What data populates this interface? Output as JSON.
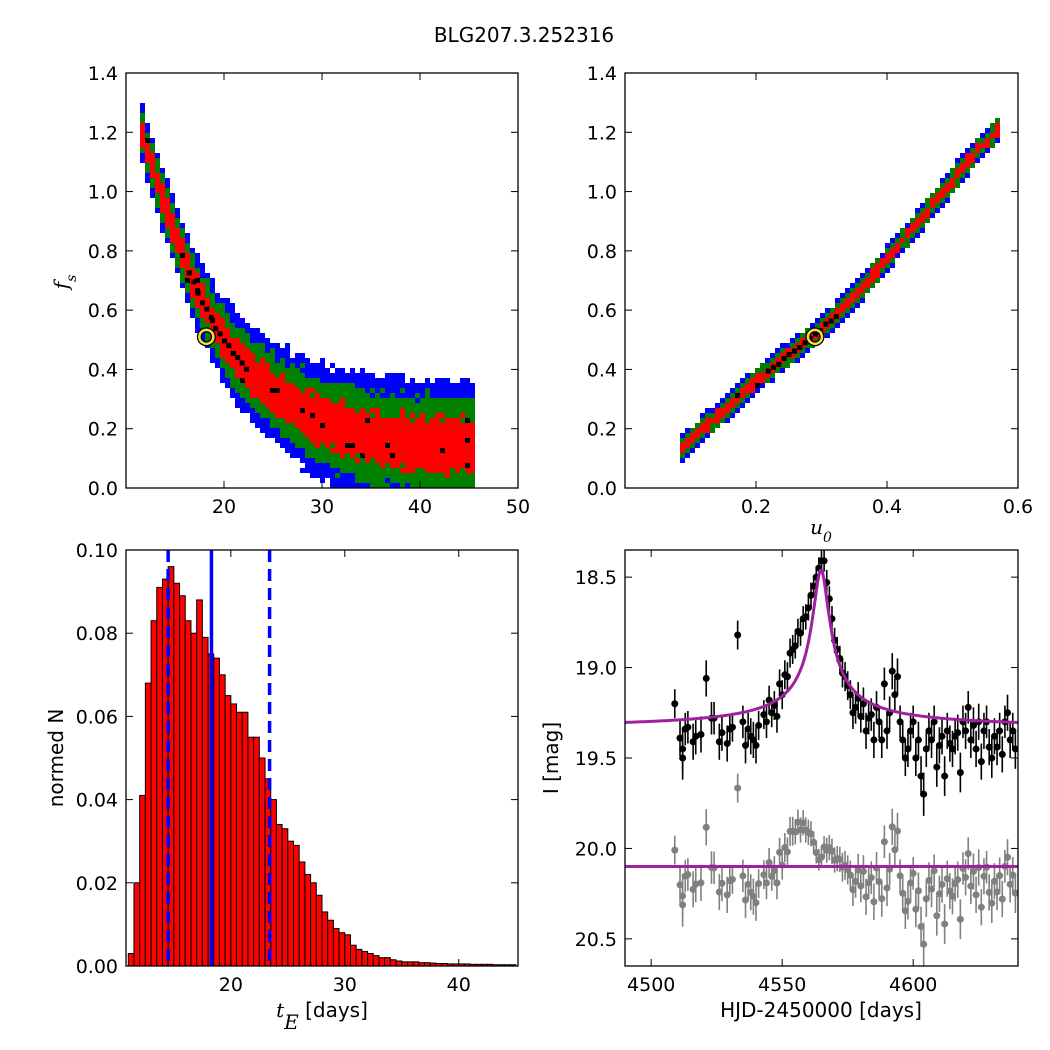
{
  "figure": {
    "title": "BLG207.3.252316"
  },
  "chart_data": [
    {
      "id": "fs_vs_tE",
      "type": "heatmap",
      "title": "",
      "xlabel": "",
      "ylabel": "f_s",
      "ylabel_parts": {
        "base": "f",
        "sub": "s"
      },
      "xlim": [
        10,
        50
      ],
      "ylim": [
        0.0,
        1.4
      ],
      "xticks": [
        20,
        30,
        40,
        50
      ],
      "yticks": [
        0.0,
        0.2,
        0.4,
        0.6,
        0.8,
        1.0,
        1.2,
        1.4
      ],
      "ytick_labels": [
        "0.0",
        "0.2",
        "0.4",
        "0.6",
        "0.8",
        "1.0",
        "1.2",
        "1.4"
      ],
      "confidence_colors": {
        "outer": "#0000ff",
        "mid": "#008000",
        "inner": "#ff0000",
        "core": "#000000"
      },
      "band_curve": {
        "x": [
          11.5,
          13,
          15,
          17,
          19,
          21,
          23,
          26,
          30,
          35,
          40,
          45.5
        ],
        "y": [
          1.21,
          1.05,
          0.85,
          0.68,
          0.55,
          0.45,
          0.38,
          0.3,
          0.22,
          0.17,
          0.15,
          0.14
        ]
      },
      "best_fit": {
        "x": 18.2,
        "y": 0.51
      }
    },
    {
      "id": "fs_vs_u0",
      "type": "heatmap",
      "title": "",
      "xlabel": "u_0",
      "xlabel_parts": {
        "base": "u",
        "sub": "0"
      },
      "ylabel": "",
      "xlim": [
        0.0,
        0.6
      ],
      "ylim": [
        0.0,
        1.4
      ],
      "xticks": [
        0.2,
        0.4,
        0.6
      ],
      "xtick_labels": [
        "0.2",
        "0.4",
        "0.6"
      ],
      "yticks": [
        0.0,
        0.2,
        0.4,
        0.6,
        0.8,
        1.0,
        1.2,
        1.4
      ],
      "ytick_labels": [
        "0.0",
        "0.2",
        "0.4",
        "0.6",
        "0.8",
        "1.0",
        "1.2",
        "1.4"
      ],
      "band_curve": {
        "x": [
          0.085,
          0.12,
          0.17,
          0.22,
          0.28,
          0.33,
          0.38,
          0.43,
          0.48,
          0.53,
          0.57
        ],
        "y": [
          0.13,
          0.2,
          0.3,
          0.4,
          0.5,
          0.6,
          0.72,
          0.85,
          0.98,
          1.12,
          1.21
        ]
      },
      "best_fit": {
        "x": 0.29,
        "y": 0.51
      }
    },
    {
      "id": "tE_histogram",
      "type": "bar",
      "title": "",
      "xlabel": "t_E [days]",
      "xlabel_parts": {
        "base": "t",
        "sub": "E",
        "rest": " [days]"
      },
      "ylabel": "normed N",
      "xlim": [
        10.8,
        45.2
      ],
      "ylim": [
        0.0,
        0.1
      ],
      "xticks": [
        20,
        30,
        40
      ],
      "yticks": [
        0.0,
        0.02,
        0.04,
        0.06,
        0.08,
        0.1
      ],
      "ytick_labels": [
        "0.00",
        "0.02",
        "0.04",
        "0.06",
        "0.08",
        "0.10"
      ],
      "bin_start": 11.0,
      "bin_width": 0.5,
      "values": [
        0.003,
        0.02,
        0.041,
        0.068,
        0.083,
        0.091,
        0.093,
        0.096,
        0.092,
        0.089,
        0.083,
        0.08,
        0.088,
        0.079,
        0.075,
        0.074,
        0.07,
        0.065,
        0.063,
        0.061,
        0.061,
        0.055,
        0.055,
        0.05,
        0.045,
        0.04,
        0.034,
        0.033,
        0.03,
        0.029,
        0.025,
        0.022,
        0.02,
        0.017,
        0.013,
        0.011,
        0.009,
        0.008,
        0.0075,
        0.005,
        0.004,
        0.0035,
        0.003,
        0.0025,
        0.002,
        0.002,
        0.0015,
        0.0012,
        0.001,
        0.001,
        0.001,
        0.0008,
        0.0008,
        0.0007,
        0.0006,
        0.0006,
        0.0005,
        0.0005,
        0.0005,
        0.0005,
        0.0004,
        0.0004,
        0.0004,
        0.0004,
        0.0003,
        0.0003,
        0.0003,
        0.0003
      ],
      "bar_color": "#ff0000",
      "median": 18.3,
      "interval": [
        14.5,
        23.4
      ],
      "line_color": "#0000ff"
    },
    {
      "id": "light_curve",
      "type": "scatter",
      "title": "",
      "xlabel": "HJD-2450000 [days]",
      "ylabel": "I [mag]",
      "xlim": [
        4490,
        4640
      ],
      "ylim": [
        20.65,
        18.35
      ],
      "xticks": [
        4500,
        4550,
        4600
      ],
      "yticks": [
        18.5,
        19.0,
        19.5,
        20.0,
        20.5
      ],
      "ytick_labels": [
        "18.5",
        "19.0",
        "19.5",
        "20.0",
        "20.5"
      ],
      "model_color": "#a020a0",
      "model": {
        "baseline": 19.34,
        "peak_mag": 18.46,
        "t0": 4564.8,
        "width": 4.2
      },
      "residual_offset": 20.1,
      "series": [
        {
          "name": "",
          "color": "#000000",
          "points": [
            [
              4509,
              19.2,
              0.08
            ],
            [
              4511,
              19.39,
              0.1
            ],
            [
              4512,
              19.45,
              0.12
            ],
            [
              4512,
              19.5,
              0.12
            ],
            [
              4513,
              19.34,
              0.09
            ],
            [
              4514,
              19.33,
              0.09
            ],
            [
              4516,
              19.41,
              0.1
            ],
            [
              4517,
              19.38,
              0.1
            ],
            [
              4519,
              19.37,
              0.1
            ],
            [
              4521,
              19.06,
              0.1
            ],
            [
              4523,
              19.28,
              0.09
            ],
            [
              4524,
              19.28,
              0.09
            ],
            [
              4526,
              19.41,
              0.1
            ],
            [
              4527,
              19.36,
              0.1
            ],
            [
              4529,
              19.42,
              0.1
            ],
            [
              4530,
              19.34,
              0.08
            ],
            [
              4531,
              19.33,
              0.08
            ],
            [
              4533,
              18.82,
              0.08
            ],
            [
              4535,
              19.3,
              0.09
            ],
            [
              4536,
              19.43,
              0.1
            ],
            [
              4537,
              19.34,
              0.09
            ],
            [
              4538,
              19.38,
              0.1
            ],
            [
              4539,
              19.4,
              0.1
            ],
            [
              4540,
              19.43,
              0.1
            ],
            [
              4541,
              19.32,
              0.08
            ],
            [
              4543,
              19.26,
              0.08
            ],
            [
              4544,
              19.3,
              0.09
            ],
            [
              4545,
              19.18,
              0.08
            ],
            [
              4546,
              19.25,
              0.08
            ],
            [
              4547,
              19.21,
              0.08
            ],
            [
              4548,
              19.27,
              0.09
            ],
            [
              4549,
              19.09,
              0.08
            ],
            [
              4550,
              19.15,
              0.08
            ],
            [
              4551,
              19.04,
              0.08
            ],
            [
              4552,
              19.05,
              0.08
            ],
            [
              4553,
              18.92,
              0.08
            ],
            [
              4554,
              18.9,
              0.08
            ],
            [
              4555,
              18.88,
              0.07
            ],
            [
              4556,
              18.8,
              0.07
            ],
            [
              4557,
              18.81,
              0.07
            ],
            [
              4558,
              18.73,
              0.07
            ],
            [
              4559,
              18.72,
              0.07
            ],
            [
              4560,
              18.67,
              0.07
            ],
            [
              4561,
              18.6,
              0.07
            ],
            [
              4562,
              18.55,
              0.06
            ],
            [
              4563,
              18.5,
              0.06
            ],
            [
              4564,
              18.45,
              0.06
            ],
            [
              4565,
              18.41,
              0.06
            ],
            [
              4566,
              18.41,
              0.06
            ],
            [
              4567,
              18.53,
              0.07
            ],
            [
              4568,
              18.62,
              0.07
            ],
            [
              4569,
              18.73,
              0.07
            ],
            [
              4570,
              18.85,
              0.07
            ],
            [
              4571,
              18.9,
              0.07
            ],
            [
              4572,
              18.95,
              0.07
            ],
            [
              4573,
              19.03,
              0.08
            ],
            [
              4574,
              19.05,
              0.08
            ],
            [
              4575,
              19.1,
              0.08
            ],
            [
              4576,
              19.15,
              0.08
            ],
            [
              4577,
              19.25,
              0.09
            ],
            [
              4578,
              19.22,
              0.09
            ],
            [
              4579,
              19.17,
              0.09
            ],
            [
              4580,
              19.27,
              0.09
            ],
            [
              4581,
              19.2,
              0.09
            ],
            [
              4582,
              19.35,
              0.1
            ],
            [
              4583,
              19.28,
              0.09
            ],
            [
              4584,
              19.26,
              0.09
            ],
            [
              4585,
              19.4,
              0.1
            ],
            [
              4586,
              19.22,
              0.09
            ],
            [
              4587,
              19.3,
              0.09
            ],
            [
              4588,
              19.4,
              0.1
            ],
            [
              4589,
              19.09,
              0.09
            ],
            [
              4590,
              19.35,
              0.1
            ],
            [
              4591,
              19.25,
              0.09
            ],
            [
              4592,
              19.02,
              0.1
            ],
            [
              4593,
              19.15,
              0.09
            ],
            [
              4594,
              19.05,
              0.1
            ],
            [
              4595,
              19.3,
              0.09
            ],
            [
              4596,
              19.4,
              0.1
            ],
            [
              4597,
              19.5,
              0.1
            ],
            [
              4598,
              19.45,
              0.1
            ],
            [
              4599,
              19.35,
              0.1
            ],
            [
              4600,
              19.3,
              0.09
            ],
            [
              4601,
              19.5,
              0.1
            ],
            [
              4602,
              19.4,
              0.1
            ],
            [
              4603,
              19.6,
              0.11
            ],
            [
              4604,
              19.7,
              0.12
            ],
            [
              4605,
              19.45,
              0.1
            ],
            [
              4606,
              19.35,
              0.1
            ],
            [
              4607,
              19.4,
              0.1
            ],
            [
              4608,
              19.3,
              0.09
            ],
            [
              4609,
              19.55,
              0.11
            ],
            [
              4610,
              19.43,
              0.1
            ],
            [
              4611,
              19.38,
              0.1
            ],
            [
              4612,
              19.6,
              0.11
            ],
            [
              4613,
              19.35,
              0.1
            ],
            [
              4614,
              19.42,
              0.1
            ],
            [
              4615,
              19.45,
              0.1
            ],
            [
              4616,
              19.38,
              0.1
            ],
            [
              4617,
              19.36,
              0.1
            ],
            [
              4618,
              19.58,
              0.11
            ],
            [
              4619,
              19.3,
              0.09
            ],
            [
              4620,
              19.35,
              0.1
            ],
            [
              4621,
              19.22,
              0.09
            ],
            [
              4622,
              19.4,
              0.1
            ],
            [
              4623,
              19.32,
              0.1
            ],
            [
              4624,
              19.45,
              0.1
            ],
            [
              4625,
              19.3,
              0.1
            ],
            [
              4626,
              19.52,
              0.1
            ],
            [
              4627,
              19.35,
              0.1
            ],
            [
              4628,
              19.3,
              0.09
            ],
            [
              4629,
              19.44,
              0.1
            ],
            [
              4630,
              19.5,
              0.11
            ],
            [
              4631,
              19.38,
              0.1
            ],
            [
              4632,
              19.44,
              0.1
            ],
            [
              4633,
              19.35,
              0.1
            ],
            [
              4634,
              19.48,
              0.1
            ],
            [
              4635,
              19.3,
              0.09
            ],
            [
              4636,
              19.25,
              0.1
            ],
            [
              4637,
              19.4,
              0.1
            ],
            [
              4638,
              19.35,
              0.1
            ],
            [
              4639,
              19.45,
              0.11
            ]
          ]
        },
        {
          "name": "",
          "color": "#808080",
          "derived_from_first_series": true
        }
      ]
    }
  ]
}
